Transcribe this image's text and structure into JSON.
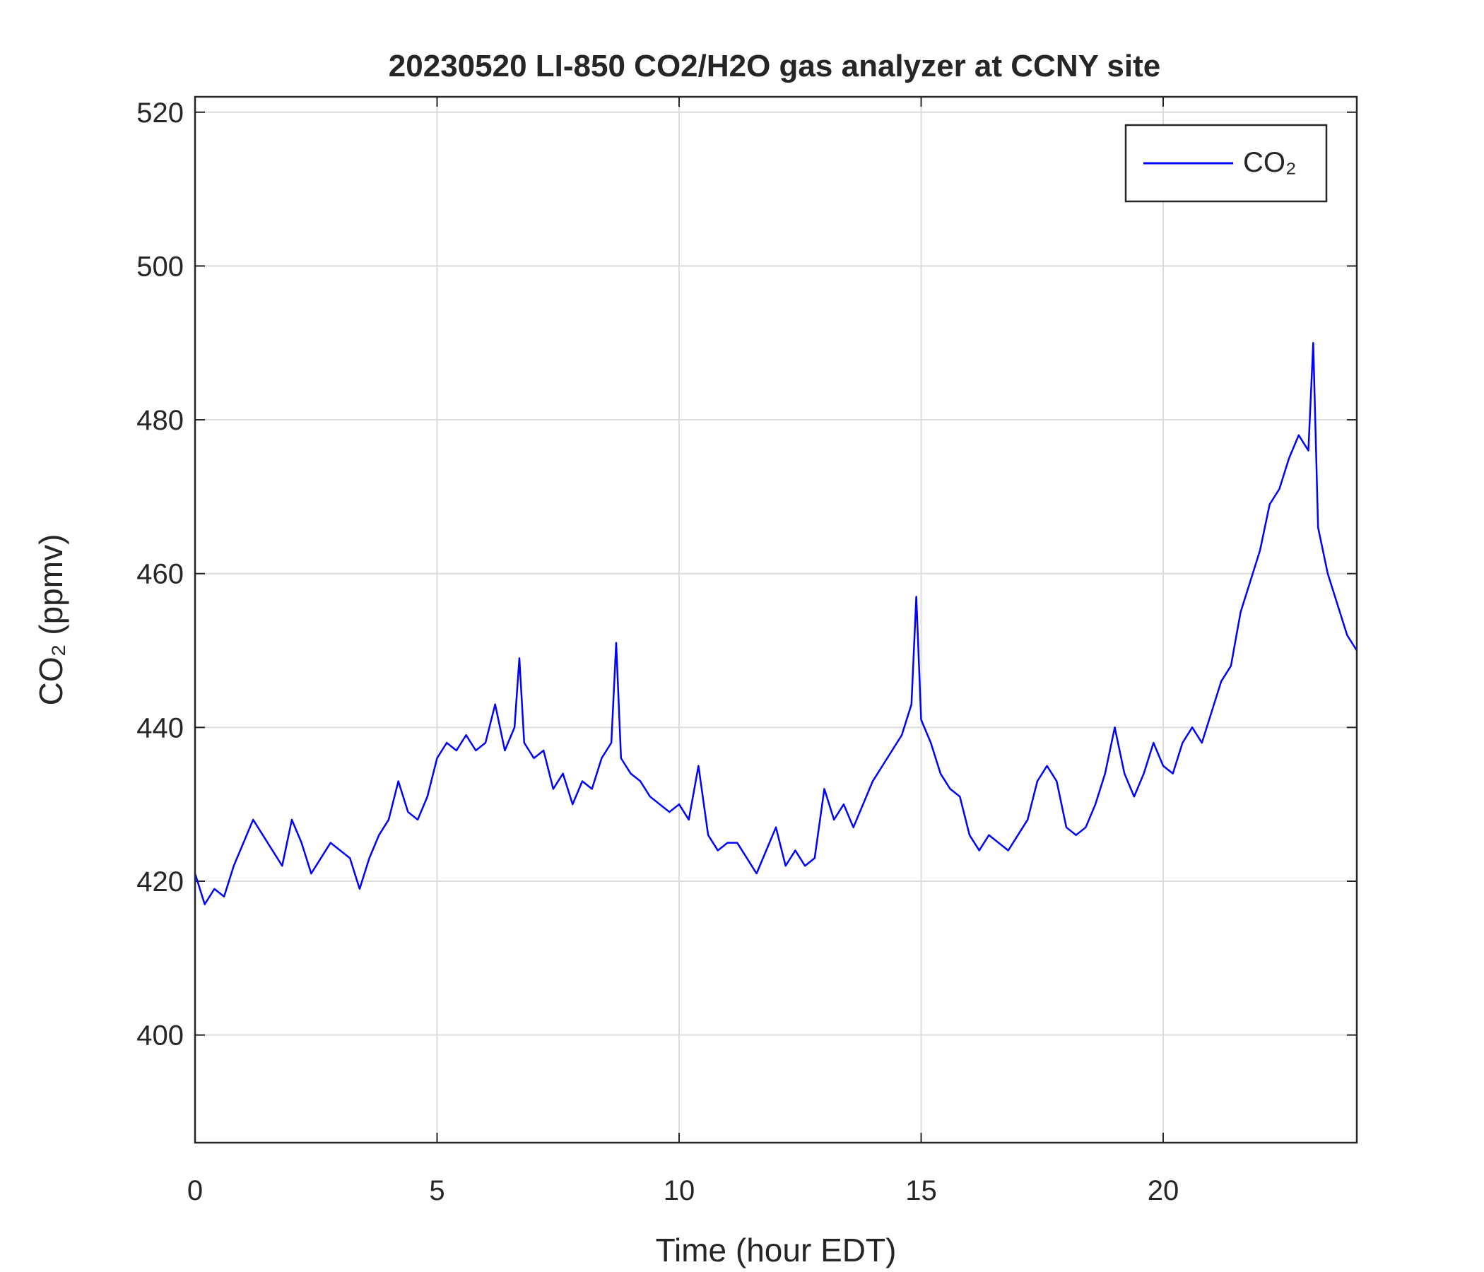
{
  "chart_data": {
    "type": "line",
    "title": "20230520 LI-850 CO2/H2O gas analyzer at CCNY site",
    "x_label": "Time (hour EDT)",
    "y_label": "CO₂ (ppmv)",
    "xlim": [
      0,
      24
    ],
    "xticks": [
      0,
      5,
      10,
      15,
      20
    ],
    "ylim": [
      386,
      522
    ],
    "yticks": [
      400,
      420,
      440,
      460,
      480,
      500,
      520
    ],
    "grid": true,
    "legend": "upper right",
    "x": [
      0,
      0.2,
      0.4,
      0.6,
      0.8,
      1.0,
      1.2,
      1.4,
      1.6,
      1.8,
      2.0,
      2.2,
      2.4,
      2.6,
      2.8,
      3.0,
      3.2,
      3.4,
      3.6,
      3.8,
      4.0,
      4.2,
      4.4,
      4.6,
      4.8,
      5.0,
      5.2,
      5.4,
      5.6,
      5.8,
      6.0,
      6.2,
      6.4,
      6.6,
      6.7,
      6.8,
      7.0,
      7.2,
      7.4,
      7.6,
      7.8,
      8.0,
      8.2,
      8.4,
      8.6,
      8.7,
      8.8,
      9.0,
      9.2,
      9.4,
      9.6,
      9.8,
      10.0,
      10.2,
      10.4,
      10.6,
      10.8,
      11.0,
      11.2,
      11.4,
      11.6,
      11.8,
      12.0,
      12.2,
      12.4,
      12.6,
      12.8,
      13.0,
      13.2,
      13.4,
      13.6,
      13.8,
      14.0,
      14.2,
      14.4,
      14.6,
      14.8,
      14.9,
      15.0,
      15.2,
      15.4,
      15.6,
      15.8,
      16.0,
      16.2,
      16.4,
      16.6,
      16.8,
      17.0,
      17.2,
      17.4,
      17.6,
      17.8,
      18.0,
      18.2,
      18.4,
      18.6,
      18.8,
      19.0,
      19.2,
      19.4,
      19.6,
      19.8,
      20.0,
      20.2,
      20.4,
      20.6,
      20.8,
      21.0,
      21.2,
      21.4,
      21.6,
      21.8,
      22.0,
      22.2,
      22.4,
      22.6,
      22.8,
      23.0,
      23.1,
      23.2,
      23.4,
      23.6,
      23.8,
      24.0
    ],
    "series": [
      {
        "name": "CO₂",
        "color": "#0000ff",
        "values": [
          421,
          417,
          419,
          418,
          422,
          425,
          428,
          426,
          424,
          422,
          428,
          425,
          421,
          423,
          425,
          424,
          423,
          419,
          423,
          426,
          428,
          433,
          429,
          428,
          431,
          436,
          438,
          437,
          439,
          437,
          438,
          443,
          437,
          440,
          449,
          438,
          436,
          437,
          432,
          434,
          430,
          433,
          432,
          436,
          438,
          451,
          436,
          434,
          433,
          431,
          430,
          429,
          430,
          428,
          435,
          426,
          424,
          425,
          425,
          423,
          421,
          424,
          427,
          422,
          424,
          422,
          423,
          432,
          428,
          430,
          427,
          430,
          433,
          435,
          437,
          439,
          443,
          457,
          441,
          438,
          434,
          432,
          431,
          426,
          424,
          426,
          425,
          424,
          426,
          428,
          433,
          435,
          433,
          427,
          426,
          427,
          430,
          434,
          440,
          434,
          431,
          434,
          438,
          435,
          434,
          438,
          440,
          438,
          442,
          446,
          448,
          455,
          459,
          463,
          469,
          471,
          475,
          478,
          476,
          490,
          466,
          460,
          456,
          452,
          450
        ]
      }
    ]
  }
}
